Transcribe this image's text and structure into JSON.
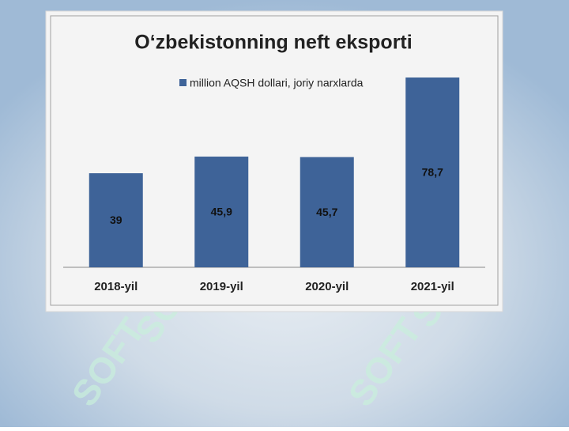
{
  "chart_data": {
    "type": "bar",
    "title": "O‘zbekistonning neft eksporti",
    "categories": [
      "2018-yil",
      "2019-yil",
      "2020-yil",
      "2021-yil"
    ],
    "series": [
      {
        "name": "million AQSH dollari, joriy narxlarda",
        "color": "#3e6398",
        "values": [
          39,
          45.9,
          45.7,
          78.7
        ],
        "value_labels": [
          "39",
          "45,9",
          "45,7",
          "78,7"
        ]
      }
    ]
  },
  "watermark": "SOFT"
}
